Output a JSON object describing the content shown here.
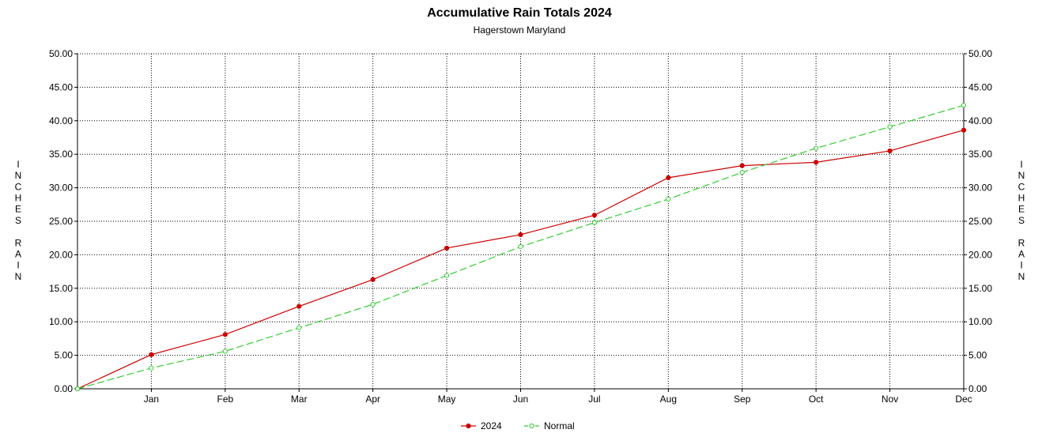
{
  "chart_data": {
    "type": "line",
    "title": "Accumulative Rain Totals 2024",
    "subtitle": "Hagerstown Maryland",
    "ylabel": "INCHES RAIN",
    "xlabel": "",
    "ylim": [
      0,
      50
    ],
    "yticks": [
      "0.00",
      "5.00",
      "10.00",
      "15.00",
      "20.00",
      "25.00",
      "30.00",
      "35.00",
      "40.00",
      "45.00",
      "50.00"
    ],
    "categories": [
      "",
      "Jan",
      "Feb",
      "Mar",
      "Apr",
      "May",
      "Jun",
      "Jul",
      "Aug",
      "Sep",
      "Oct",
      "Nov",
      "Dec"
    ],
    "grid": true,
    "legend_position": "bottom-center",
    "series": [
      {
        "name": "2024",
        "color": "#cc0000",
        "style": "solid",
        "values": [
          0.0,
          5.1,
          8.1,
          12.3,
          16.3,
          21.0,
          23.0,
          25.9,
          31.5,
          33.3,
          33.8,
          35.5,
          38.6
        ]
      },
      {
        "name": "Normal",
        "color": "#33cc33",
        "style": "dashed",
        "values": [
          0.0,
          3.1,
          5.6,
          9.1,
          12.6,
          16.9,
          21.2,
          24.8,
          28.3,
          32.3,
          35.9,
          39.1,
          42.3
        ]
      }
    ]
  }
}
